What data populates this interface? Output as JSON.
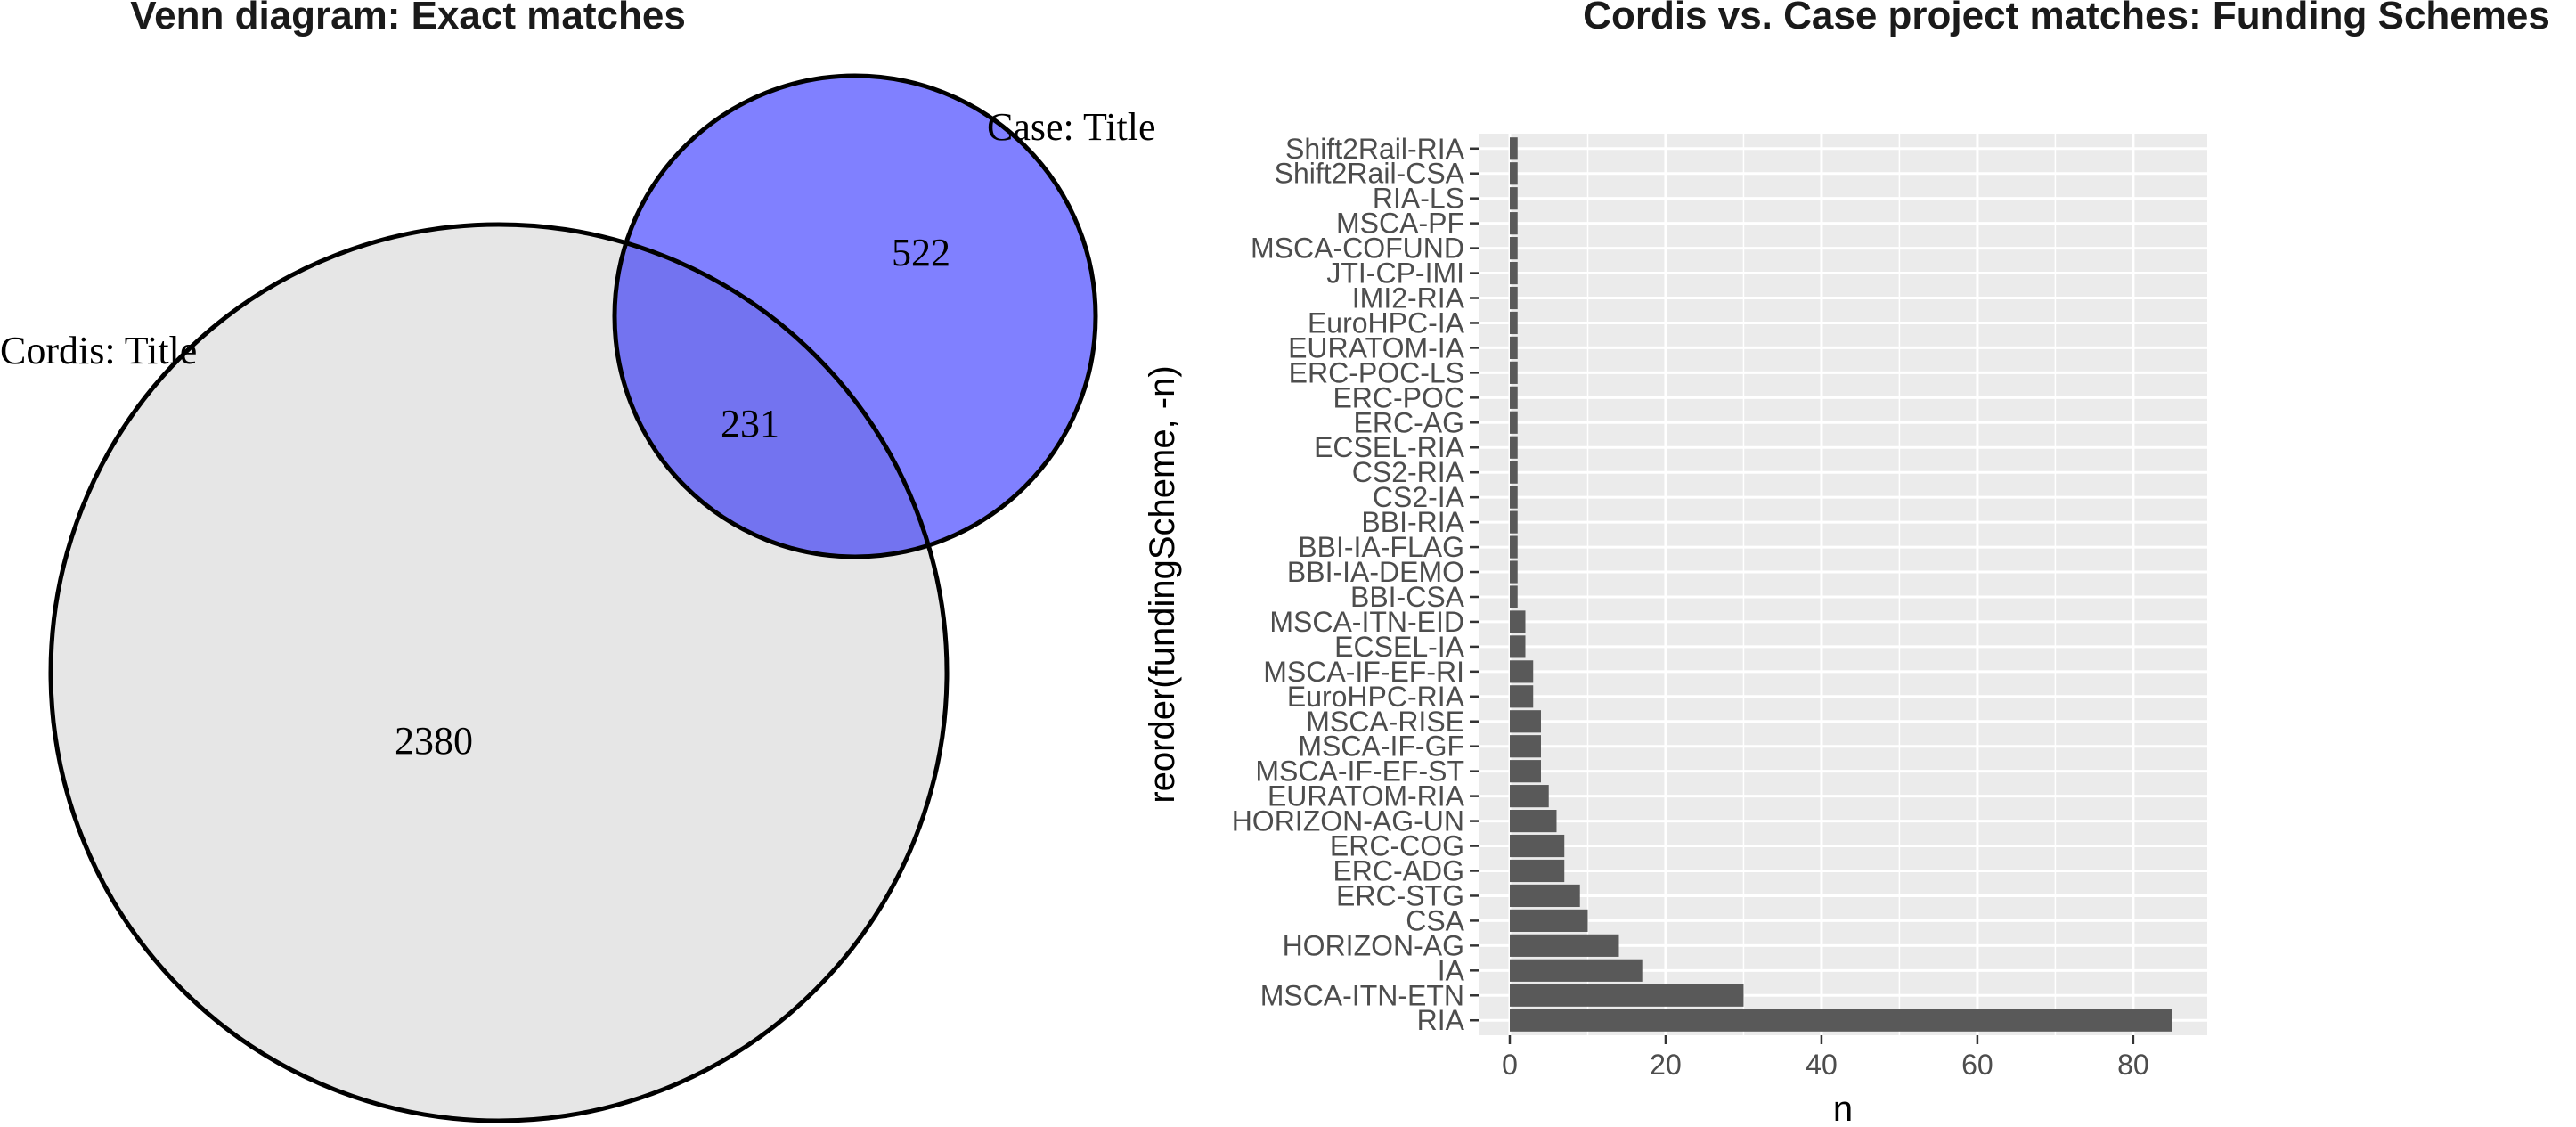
{
  "venn": {
    "title": "Venn diagram: Exact matches",
    "sets": [
      {
        "name": "Cordis: Title",
        "color": "#e6e6e6"
      },
      {
        "name": "Case: Title",
        "color": "#8080ff"
      }
    ],
    "overlap_color": "#7373f0",
    "counts": {
      "only_a": "2380",
      "only_b": "522",
      "both": "231"
    }
  },
  "chart_data": {
    "type": "bar",
    "orientation": "horizontal",
    "title": "Cordis vs. Case project matches: Funding Schemes",
    "xlabel": "n",
    "ylabel": "reorder(fundingScheme, -n)",
    "xlim": [
      -4,
      89.5
    ],
    "xticks": [
      0,
      20,
      40,
      60,
      80
    ],
    "grid": true,
    "bar_color": "#595959",
    "panel_color": "#ebebeb",
    "categories": [
      "RIA",
      "MSCA-ITN-ETN",
      "IA",
      "HORIZON-AG",
      "CSA",
      "ERC-STG",
      "ERC-ADG",
      "ERC-COG",
      "HORIZON-AG-UN",
      "EURATOM-RIA",
      "MSCA-IF-EF-ST",
      "MSCA-IF-GF",
      "MSCA-RISE",
      "EuroHPC-RIA",
      "MSCA-IF-EF-RI",
      "ECSEL-IA",
      "MSCA-ITN-EID",
      "BBI-CSA",
      "BBI-IA-DEMO",
      "BBI-IA-FLAG",
      "BBI-RIA",
      "CS2-IA",
      "CS2-RIA",
      "ECSEL-RIA",
      "ERC-AG",
      "ERC-POC",
      "ERC-POC-LS",
      "EURATOM-IA",
      "EuroHPC-IA",
      "IMI2-RIA",
      "JTI-CP-IMI",
      "MSCA-COFUND",
      "MSCA-PF",
      "RIA-LS",
      "Shift2Rail-CSA",
      "Shift2Rail-RIA"
    ],
    "values": [
      85,
      30,
      17,
      14,
      10,
      9,
      7,
      7,
      6,
      5,
      4,
      4,
      4,
      3,
      3,
      2,
      2,
      1,
      1,
      1,
      1,
      1,
      1,
      1,
      1,
      1,
      1,
      1,
      1,
      1,
      1,
      1,
      1,
      1,
      1,
      1
    ]
  }
}
